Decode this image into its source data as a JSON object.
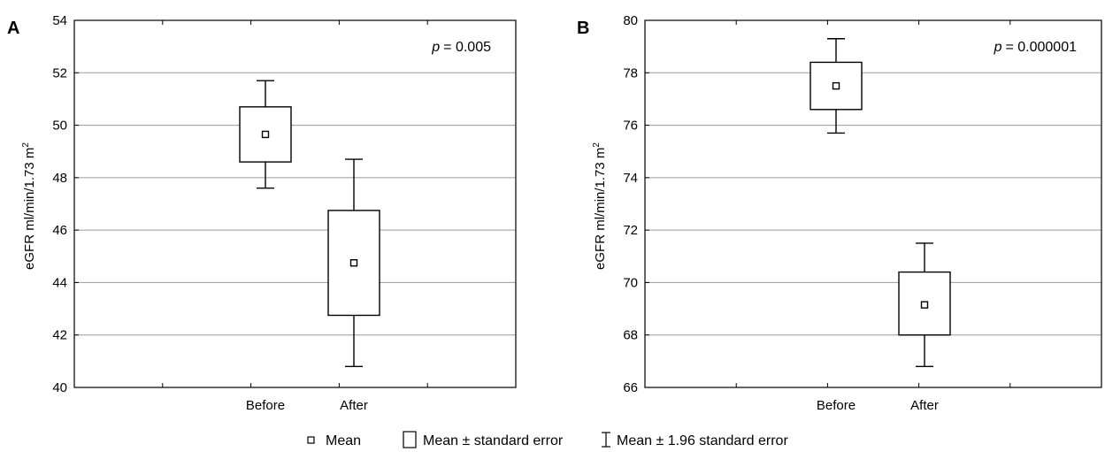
{
  "legend": {
    "mean": "Mean",
    "se": "Mean ± standard error",
    "ci": "Mean ± 1.96 standard error"
  },
  "chart_data": [
    {
      "panel": "A",
      "type": "box",
      "ylabel": "eGFR ml/min/1.73 m",
      "ylabel_superscript": "2",
      "annotation_p": "p",
      "annotation_value": "= 0.005",
      "ylim": [
        40,
        54
      ],
      "yticks": [
        40,
        42,
        44,
        46,
        48,
        50,
        52,
        54
      ],
      "categories": [
        "Before",
        "After"
      ],
      "grid": true,
      "series": [
        {
          "category": "Before",
          "mean": 49.65,
          "se_low": 48.6,
          "se_high": 50.7,
          "ci_low": 47.6,
          "ci_high": 51.7
        },
        {
          "category": "After",
          "mean": 44.75,
          "se_low": 42.75,
          "se_high": 46.75,
          "ci_low": 40.8,
          "ci_high": 48.7
        }
      ]
    },
    {
      "panel": "B",
      "type": "box",
      "ylabel": "eGFR ml/min/1.73 m",
      "ylabel_superscript": "2",
      "annotation_p": "p",
      "annotation_value": "= 0.000001",
      "ylim": [
        66,
        80
      ],
      "yticks": [
        66,
        68,
        70,
        72,
        74,
        76,
        78,
        80
      ],
      "categories": [
        "Before",
        "After"
      ],
      "grid": true,
      "series": [
        {
          "category": "Before",
          "mean": 77.5,
          "se_low": 76.6,
          "se_high": 78.4,
          "ci_low": 75.7,
          "ci_high": 79.3
        },
        {
          "category": "After",
          "mean": 69.15,
          "se_low": 68.0,
          "se_high": 70.4,
          "ci_low": 66.8,
          "ci_high": 71.5
        }
      ]
    }
  ]
}
